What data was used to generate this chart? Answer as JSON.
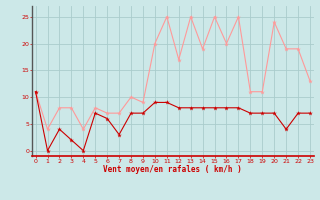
{
  "x": [
    0,
    1,
    2,
    3,
    4,
    5,
    6,
    7,
    8,
    9,
    10,
    11,
    12,
    13,
    14,
    15,
    16,
    17,
    18,
    19,
    20,
    21,
    22,
    23
  ],
  "wind_mean": [
    11,
    0,
    4,
    2,
    0,
    7,
    6,
    3,
    7,
    7,
    9,
    9,
    8,
    8,
    8,
    8,
    8,
    8,
    7,
    7,
    7,
    4,
    7,
    7
  ],
  "wind_gust": [
    11,
    4,
    8,
    8,
    4,
    8,
    7,
    7,
    10,
    9,
    20,
    25,
    17,
    25,
    19,
    25,
    20,
    25,
    11,
    11,
    24,
    19,
    19,
    13
  ],
  "bg_color": "#cce8e8",
  "grid_color": "#aacccc",
  "line_mean_color": "#cc0000",
  "line_gust_color": "#ff9999",
  "xlabel": "Vent moyen/en rafales ( km/h )",
  "xlabel_color": "#cc0000",
  "ylim": [
    -1,
    27
  ],
  "yticks": [
    0,
    5,
    10,
    15,
    20,
    25
  ],
  "xticks": [
    0,
    1,
    2,
    3,
    4,
    5,
    6,
    7,
    8,
    9,
    10,
    11,
    12,
    13,
    14,
    15,
    16,
    17,
    18,
    19,
    20,
    21,
    22,
    23
  ],
  "tick_color": "#cc0000",
  "spine_left_color": "#555555",
  "spine_bottom_color": "#cc0000"
}
